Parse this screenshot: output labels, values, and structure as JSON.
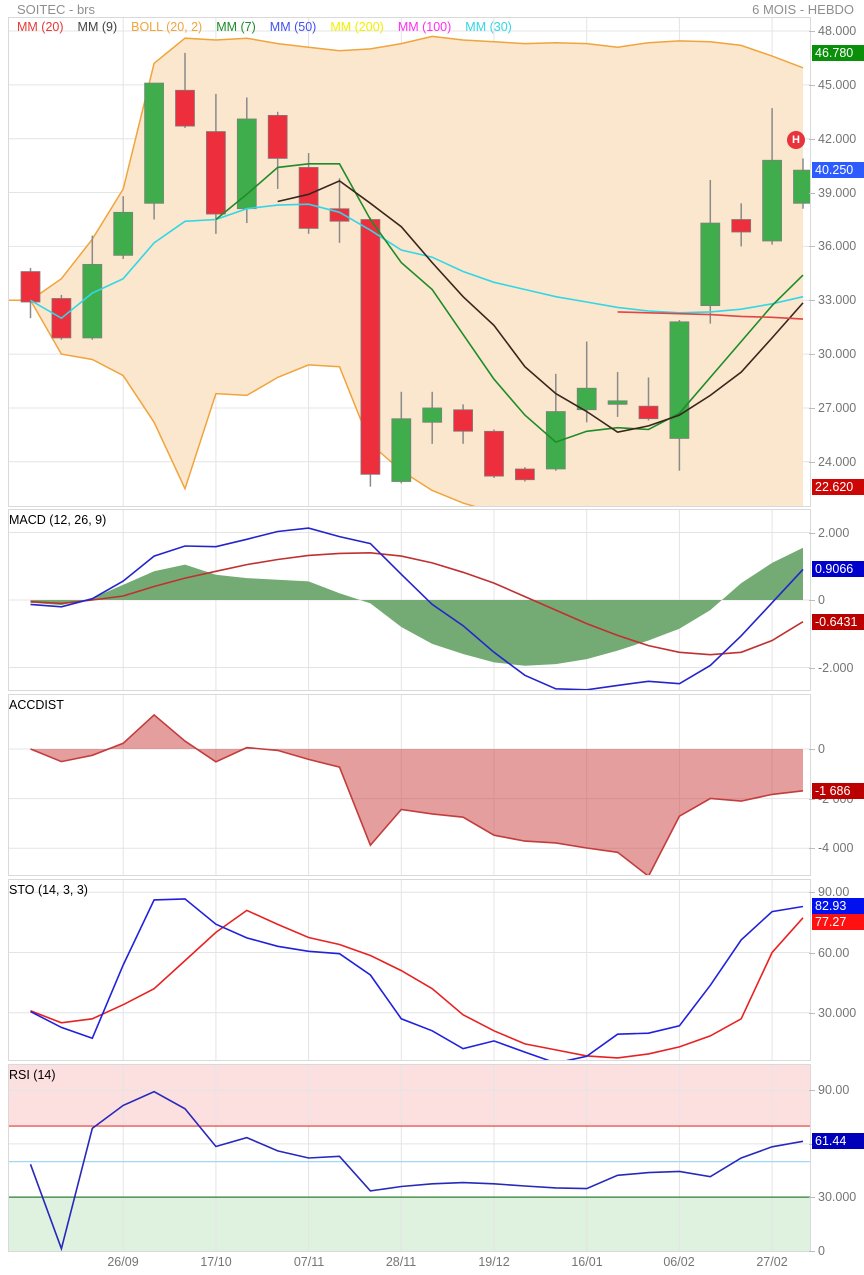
{
  "header": {
    "title": "SOITEC - brs",
    "period": "6 MOIS - HEBDO"
  },
  "legend": [
    {
      "label": "MM (20)",
      "color": "#e53935"
    },
    {
      "label": "MM (9)",
      "color": "#424242"
    },
    {
      "label": "BOLL (20, 2)",
      "color": "#f0a43c"
    },
    {
      "label": "MM (7)",
      "color": "#1e8c28"
    },
    {
      "label": "MM (50)",
      "color": "#4350f0"
    },
    {
      "label": "MM (200)",
      "color": "#f0f000"
    },
    {
      "label": "MM (100)",
      "color": "#ff2ff2"
    },
    {
      "label": "MM (30)",
      "color": "#33d6e6"
    }
  ],
  "panels": {
    "macd": {
      "label": "MACD (12, 26, 9)",
      "color": "#2626c9"
    },
    "accdist": {
      "label": "ACCDIST",
      "color": "#c43c3c"
    },
    "sto": {
      "label": "STO (14, 3, 3)",
      "color": "#2626c9"
    },
    "rsi": {
      "label": "RSI (14)",
      "color": "#2626c9"
    }
  },
  "event_marker": {
    "label": "H",
    "color": "#e8323c"
  },
  "axes": {
    "price": {
      "ticks": [
        {
          "v": 48,
          "t": "48.000"
        },
        {
          "v": 45,
          "t": "45.000"
        },
        {
          "v": 42,
          "t": "42.000"
        },
        {
          "v": 39,
          "t": "39.000"
        },
        {
          "v": 36,
          "t": "36.000"
        },
        {
          "v": 33,
          "t": "33.000"
        },
        {
          "v": 30,
          "t": "30.000"
        },
        {
          "v": 27,
          "t": "27.000"
        },
        {
          "v": 24,
          "t": "24.000"
        }
      ],
      "badges": [
        {
          "v": 46.78,
          "t": "46.780",
          "bg": "#0a8f0a"
        },
        {
          "v": 40.25,
          "t": "40.250",
          "bg": "#2c5bff"
        },
        {
          "v": 22.62,
          "t": "22.620",
          "bg": "#cc0505"
        }
      ]
    },
    "macd": {
      "ticks": [
        {
          "v": 2,
          "t": "2.000"
        },
        {
          "v": 0,
          "t": "0"
        },
        {
          "v": -2,
          "t": "-2.000"
        }
      ],
      "badges": [
        {
          "v": 0.9066,
          "t": "0.9066",
          "bg": "#0000cd"
        },
        {
          "v": -0.6431,
          "t": "-0.6431",
          "bg": "#bb0000"
        }
      ]
    },
    "accdist": {
      "ticks": [
        {
          "v": 0,
          "t": "0"
        },
        {
          "v": -2000,
          "t": "-2 000"
        },
        {
          "v": -4000,
          "t": "-4 000"
        }
      ],
      "badges": [
        {
          "v": -1686,
          "t": "-1 686",
          "bg": "#bb0000"
        }
      ]
    },
    "sto": {
      "ticks": [
        {
          "v": 90,
          "t": "90.00"
        },
        {
          "v": 60,
          "t": "60.00"
        },
        {
          "v": 30,
          "t": "30.000"
        }
      ],
      "badges": [
        {
          "v": 82.93,
          "t": "82.93",
          "bg": "#0010ee"
        },
        {
          "v": 77.27,
          "t": "77.27",
          "bg": "#ff1111"
        }
      ]
    },
    "rsi": {
      "ticks": [
        {
          "v": 90,
          "t": "90.00"
        },
        {
          "v": 60,
          "t": "60.00"
        },
        {
          "v": 30,
          "t": "30.000"
        },
        {
          "v": 0,
          "t": "0"
        }
      ],
      "badges": [
        {
          "v": 61.44,
          "t": "61.44",
          "bg": "#0000bb"
        }
      ]
    }
  },
  "chart_data": [
    {
      "id": "price",
      "type": "candlestick",
      "title": "SOITEC - brs",
      "period": "6 MOIS - HEBDO",
      "ylim": [
        22.1,
        48.7
      ],
      "grid": [
        48,
        45,
        42,
        39,
        36,
        33,
        30,
        27,
        24
      ],
      "x_labels": [
        "26/09",
        "17/10",
        "07/11",
        "28/11",
        "19/12",
        "16/01",
        "06/02",
        "27/02"
      ],
      "x_label_weeks": [
        3,
        6,
        9,
        12,
        15,
        18,
        21,
        24
      ],
      "colors": {
        "up": "#3fad4b",
        "down": "#ed2f3d",
        "wick": "#8a8a8a",
        "body_border": "#7e7e7e",
        "boll_line": "#f0a43c",
        "boll_fill": "#fbe7cd",
        "mm30": "#33d6e6",
        "mm7": "#1e8c28",
        "mm9": "#38251c",
        "mm20": "#e04545"
      },
      "candles": [
        {
          "o": 34.6,
          "h": 34.8,
          "l": 32.0,
          "c": 32.9
        },
        {
          "o": 33.1,
          "h": 33.3,
          "l": 30.8,
          "c": 30.9
        },
        {
          "o": 30.9,
          "h": 36.6,
          "l": 30.8,
          "c": 35.0
        },
        {
          "o": 35.5,
          "h": 38.8,
          "l": 35.3,
          "c": 37.9
        },
        {
          "o": 38.4,
          "h": 45.1,
          "l": 37.5,
          "c": 45.1
        },
        {
          "o": 44.7,
          "h": 46.78,
          "l": 42.6,
          "c": 42.7
        },
        {
          "o": 42.4,
          "h": 44.5,
          "l": 36.7,
          "c": 37.8
        },
        {
          "o": 38.1,
          "h": 44.3,
          "l": 37.3,
          "c": 43.1
        },
        {
          "o": 43.3,
          "h": 43.5,
          "l": 39.2,
          "c": 40.9
        },
        {
          "o": 40.4,
          "h": 41.2,
          "l": 36.7,
          "c": 37.0
        },
        {
          "o": 38.1,
          "h": 39.8,
          "l": 36.2,
          "c": 37.4
        },
        {
          "o": 37.5,
          "h": 37.6,
          "l": 22.62,
          "c": 23.3
        },
        {
          "o": 22.9,
          "h": 27.9,
          "l": 22.8,
          "c": 26.4
        },
        {
          "o": 26.2,
          "h": 27.9,
          "l": 25.0,
          "c": 27.0
        },
        {
          "o": 26.9,
          "h": 27.2,
          "l": 25.0,
          "c": 25.7
        },
        {
          "o": 25.7,
          "h": 25.8,
          "l": 23.1,
          "c": 23.2
        },
        {
          "o": 23.6,
          "h": 23.7,
          "l": 22.9,
          "c": 23.0
        },
        {
          "o": 23.6,
          "h": 28.9,
          "l": 23.5,
          "c": 26.8
        },
        {
          "o": 26.9,
          "h": 30.7,
          "l": 26.2,
          "c": 28.1
        },
        {
          "o": 27.2,
          "h": 29.0,
          "l": 26.5,
          "c": 27.4
        },
        {
          "o": 27.1,
          "h": 28.7,
          "l": 26.3,
          "c": 26.4
        },
        {
          "o": 25.3,
          "h": 31.9,
          "l": 23.5,
          "c": 31.8
        },
        {
          "o": 32.7,
          "h": 39.7,
          "l": 31.7,
          "c": 37.3
        },
        {
          "o": 37.5,
          "h": 38.4,
          "l": 36.0,
          "c": 36.8
        },
        {
          "o": 36.3,
          "h": 43.7,
          "l": 36.1,
          "c": 40.8
        },
        {
          "o": 38.4,
          "h": 40.9,
          "l": 38.1,
          "c": 40.25
        }
      ],
      "overlays": {
        "boll_start": 33.0,
        "boll_upper": [
          33.0,
          34.2,
          36.4,
          39.2,
          46.2,
          47.6,
          47.5,
          47.6,
          47.3,
          47.1,
          46.9,
          47.0,
          47.3,
          47.7,
          47.5,
          47.4,
          47.3,
          47.35,
          47.3,
          47.1,
          47.35,
          47.45,
          47.4,
          47.2,
          46.6,
          45.95
        ],
        "boll_lower": [
          33.0,
          30.0,
          29.7,
          28.8,
          26.2,
          22.5,
          27.8,
          27.7,
          28.7,
          29.4,
          29.3,
          25.0,
          23.5,
          22.4,
          21.7,
          21.2,
          21.0,
          20.9,
          20.9,
          21.0,
          21.0,
          20.9,
          20.9,
          21.0,
          21.1,
          21.2
        ],
        "mm30": [
          33.0,
          32.0,
          33.4,
          34.2,
          36.2,
          37.4,
          37.5,
          38.1,
          38.3,
          38.35,
          37.9,
          36.9,
          35.8,
          35.4,
          34.6,
          34.0,
          33.6,
          33.2,
          32.9,
          32.6,
          32.4,
          32.3,
          32.35,
          32.5,
          32.8,
          33.2
        ],
        "mm7": [
          null,
          null,
          null,
          null,
          null,
          null,
          37.5,
          38.9,
          40.4,
          40.6,
          40.6,
          37.5,
          35.1,
          33.6,
          31.1,
          28.6,
          26.6,
          25.1,
          25.7,
          25.9,
          25.8,
          26.7,
          28.7,
          30.7,
          32.7,
          34.4
        ],
        "mm9": [
          null,
          null,
          null,
          null,
          null,
          null,
          null,
          null,
          38.5,
          38.9,
          39.65,
          38.4,
          37.1,
          35.1,
          33.2,
          31.6,
          29.3,
          27.8,
          26.8,
          25.65,
          26.0,
          26.6,
          27.7,
          29.0,
          30.9,
          32.85
        ],
        "mm20": [
          null,
          null,
          null,
          null,
          null,
          null,
          null,
          null,
          null,
          null,
          null,
          null,
          null,
          null,
          null,
          null,
          null,
          null,
          null,
          32.35,
          32.3,
          32.25,
          32.2,
          32.1,
          32.05,
          31.95
        ]
      }
    },
    {
      "id": "macd",
      "type": "line+area",
      "grid": [
        2,
        0,
        -2
      ],
      "ylim": [
        -2.7,
        2.5
      ],
      "colors": {
        "macd": "#2424cc",
        "signal": "#c03030",
        "hist": "#74ab74"
      },
      "series": {
        "histogram": [
          -0.08,
          -0.15,
          0.05,
          0.45,
          0.85,
          1.05,
          0.75,
          0.65,
          0.6,
          0.55,
          0.2,
          -0.1,
          -0.8,
          -1.3,
          -1.6,
          -1.85,
          -1.95,
          -1.9,
          -1.75,
          -1.5,
          -1.2,
          -0.85,
          -0.3,
          0.5,
          1.1,
          1.55
        ],
        "macd": [
          -0.13,
          -0.2,
          0.04,
          0.56,
          1.3,
          1.6,
          1.58,
          1.8,
          2.03,
          2.13,
          1.88,
          1.67,
          0.76,
          -0.13,
          -0.76,
          -1.55,
          -2.23,
          -2.63,
          -2.66,
          -2.53,
          -2.41,
          -2.48,
          -1.94,
          -1.06,
          -0.08,
          0.9066
        ],
        "signal": [
          -0.05,
          -0.1,
          0.0,
          0.12,
          0.4,
          0.65,
          0.85,
          1.05,
          1.2,
          1.32,
          1.38,
          1.4,
          1.3,
          1.1,
          0.82,
          0.5,
          0.1,
          -0.3,
          -0.7,
          -1.05,
          -1.35,
          -1.55,
          -1.62,
          -1.55,
          -1.2,
          -0.6431
        ]
      }
    },
    {
      "id": "accdist",
      "type": "area",
      "grid": [
        0,
        -2000,
        -4000
      ],
      "ylim": [
        -5200,
        2200
      ],
      "colors": {
        "line": "#c43c3c",
        "fill": "rgba(201,61,61,0.5)"
      },
      "values": [
        0,
        -510,
        -255,
        230,
        1374,
        320,
        -515,
        55,
        -55,
        -420,
        -730,
        -3880,
        -2440,
        -2615,
        -2750,
        -3475,
        -3715,
        -3785,
        -3990,
        -4165,
        -5130,
        -2710,
        -1995,
        -2100,
        -1830,
        -1686
      ]
    },
    {
      "id": "sto",
      "type": "line",
      "grid": [
        90,
        60,
        30
      ],
      "ylim": [
        5,
        96
      ],
      "colors": {
        "k": "#2020dd",
        "d": "#e82222"
      },
      "series": {
        "k": [
          30.6,
          22.7,
          17.3,
          53.8,
          86.2,
          86.7,
          74.1,
          67.3,
          63.1,
          60.6,
          59.4,
          48.8,
          27.0,
          21.0,
          12.1,
          16.0,
          10.4,
          5.0,
          8.3,
          19.3,
          19.8,
          23.5,
          43.7,
          66.3,
          80.4,
          82.93
        ],
        "d": [
          31,
          25,
          27,
          34,
          42,
          56,
          70,
          81,
          74,
          67.5,
          64,
          58.5,
          51,
          42,
          29,
          21,
          14.5,
          11.5,
          8.5,
          7.5,
          9.5,
          13,
          18.5,
          27,
          60,
          77.27
        ]
      }
    },
    {
      "id": "rsi",
      "type": "line",
      "grid": [
        90,
        60
      ],
      "ylim": [
        0,
        99
      ],
      "levels": {
        "overbought": 70,
        "mid": 50,
        "oversold": 30
      },
      "colors": {
        "line": "#2828bb",
        "overbought": "#e53935",
        "mid": "#9fd8f8",
        "oversold": "#2e7d32",
        "zone_high": "rgba(239,83,80,0.18)",
        "zone_low": "rgba(76,175,80,0.18)"
      },
      "values": [
        48.5,
        1.0,
        68.7,
        81.6,
        89.3,
        79.7,
        58.5,
        63.5,
        56.0,
        52.0,
        53.0,
        33.5,
        36.0,
        37.5,
        38.2,
        37.5,
        36.3,
        35.2,
        34.8,
        42.3,
        43.8,
        44.5,
        41.5,
        52.0,
        58.3,
        61.44
      ]
    }
  ]
}
